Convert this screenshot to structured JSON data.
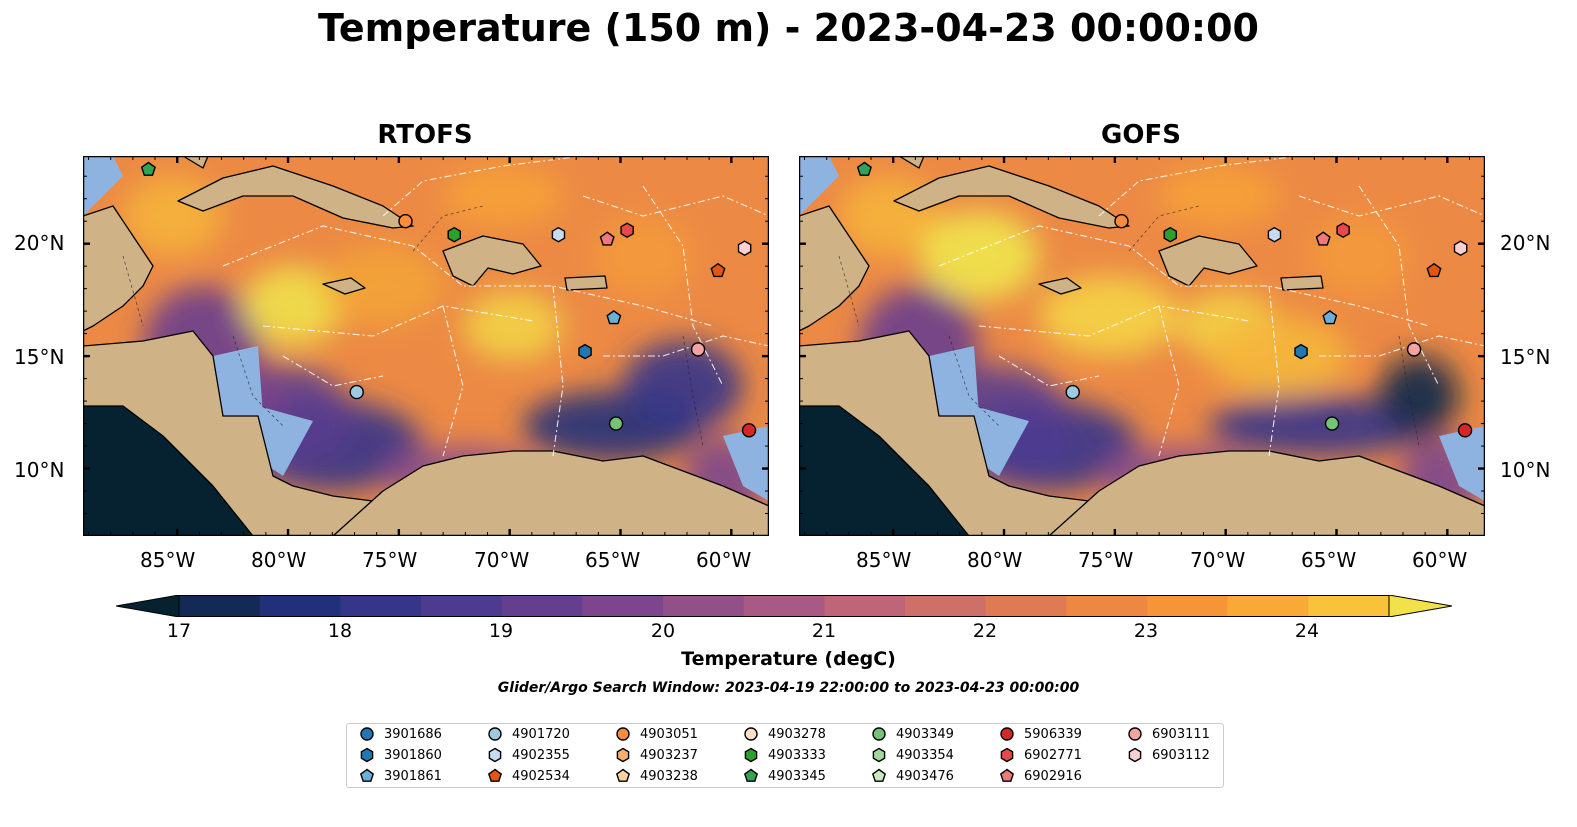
{
  "title": "Temperature (150 m) - 2023-04-23 00:00:00",
  "panels": [
    {
      "title": "RTOFS"
    },
    {
      "title": "GOFS"
    }
  ],
  "lat_labels": [
    "20°N",
    "15°N",
    "10°N"
  ],
  "lon_labels": [
    "85°W",
    "80°W",
    "75°W",
    "70°W",
    "65°W",
    "60°W"
  ],
  "colorbar": {
    "label": "Temperature (degC)",
    "ticks": [
      "17",
      "18",
      "19",
      "20",
      "21",
      "22",
      "23",
      "24"
    ],
    "colors": [
      "#062230",
      "#132a57",
      "#22307a",
      "#35358a",
      "#4c3b8f",
      "#653f8f",
      "#7c458d",
      "#925089",
      "#a85a84",
      "#be6579",
      "#cf7068",
      "#de7b55",
      "#ec8842",
      "#f69537",
      "#f9a935",
      "#f8c23b",
      "#f1e14a"
    ]
  },
  "search_window": "Glider/Argo Search Window: 2023-04-19 22:00:00 to 2023-04-23 00:00:00",
  "legend": [
    {
      "id": "3901686",
      "shape": "circle",
      "color": "#1f77b4"
    },
    {
      "id": "3901860",
      "shape": "hexagon",
      "color": "#1f77b4"
    },
    {
      "id": "3901861",
      "shape": "pentagon",
      "color": "#6baed6"
    },
    {
      "id": "4901720",
      "shape": "circle",
      "color": "#9ecae1"
    },
    {
      "id": "4902355",
      "shape": "hexagon",
      "color": "#c6dbef"
    },
    {
      "id": "4902534",
      "shape": "pentagon",
      "color": "#e6550d"
    },
    {
      "id": "4903051",
      "shape": "circle",
      "color": "#fd8d3c"
    },
    {
      "id": "4903237",
      "shape": "hexagon",
      "color": "#fdae6b"
    },
    {
      "id": "4903238",
      "shape": "pentagon",
      "color": "#fdd0a2"
    },
    {
      "id": "4903278",
      "shape": "circle",
      "color": "#fde0c8"
    },
    {
      "id": "4903333",
      "shape": "hexagon",
      "color": "#2ca02c"
    },
    {
      "id": "4903345",
      "shape": "pentagon",
      "color": "#31a354"
    },
    {
      "id": "4903349",
      "shape": "circle",
      "color": "#74c476"
    },
    {
      "id": "4903354",
      "shape": "hexagon",
      "color": "#a1d99b"
    },
    {
      "id": "4903476",
      "shape": "pentagon",
      "color": "#c7e9c0"
    },
    {
      "id": "5906339",
      "shape": "circle",
      "color": "#d62728"
    },
    {
      "id": "6902771",
      "shape": "hexagon",
      "color": "#e6494a"
    },
    {
      "id": "6902916",
      "shape": "pentagon",
      "color": "#f0787a"
    },
    {
      "id": "6903111",
      "shape": "circle",
      "color": "#f4a3a3"
    },
    {
      "id": "6903112",
      "shape": "hexagon",
      "color": "#fad0d0"
    }
  ],
  "markers": [
    {
      "id": "4903345",
      "lon": -86.3,
      "lat": 23.3
    },
    {
      "id": "4903051",
      "lon": -74.7,
      "lat": 21.0
    },
    {
      "id": "4903333",
      "lon": -72.5,
      "lat": 20.4
    },
    {
      "id": "4902355",
      "lon": -67.8,
      "lat": 20.4
    },
    {
      "id": "6902916",
      "lon": -65.6,
      "lat": 20.2
    },
    {
      "id": "6902771",
      "lon": -64.7,
      "lat": 20.6
    },
    {
      "id": "6903112",
      "lon": -59.4,
      "lat": 19.8
    },
    {
      "id": "4902534",
      "lon": -60.6,
      "lat": 18.8
    },
    {
      "id": "3901861",
      "lon": -65.3,
      "lat": 16.7
    },
    {
      "id": "3901860",
      "lon": -66.6,
      "lat": 15.2
    },
    {
      "id": "6903111",
      "lon": -61.5,
      "lat": 15.3
    },
    {
      "id": "4901720",
      "lon": -76.9,
      "lat": 13.4
    },
    {
      "id": "4903349",
      "lon": -65.2,
      "lat": 12.0
    },
    {
      "id": "5906339",
      "lon": -59.2,
      "lat": 11.7
    }
  ]
}
